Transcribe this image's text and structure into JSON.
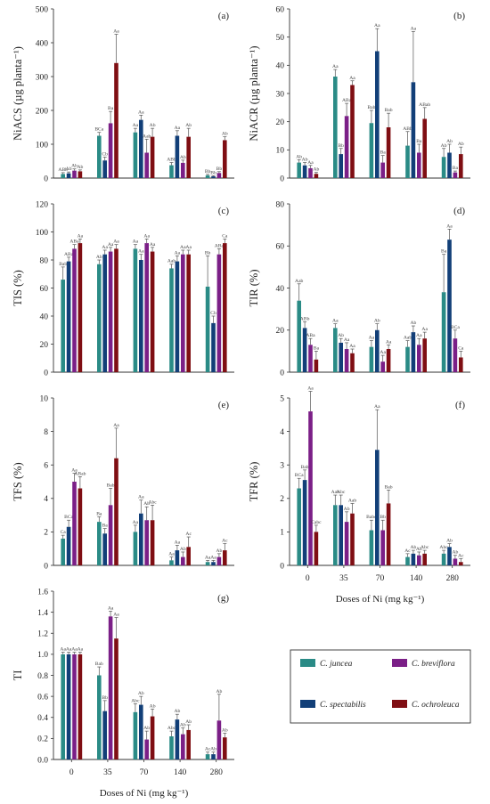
{
  "chart_data": [
    {
      "panel": "(a)",
      "type": "bar",
      "ylabel": "NiACS (µg planta⁻¹)",
      "ylim": [
        0,
        500
      ],
      "yticks": [
        0,
        100,
        200,
        300,
        400,
        500
      ],
      "xlabel": "",
      "show_xticks": false,
      "categories": [
        "0",
        "35",
        "70",
        "140",
        "280"
      ],
      "series": [
        {
          "name": "C. juncea",
          "values": [
            12,
            125,
            135,
            38,
            8
          ],
          "errors": [
            4,
            10,
            12,
            8,
            3
          ],
          "labels": [
            "ABb",
            "BCa",
            "Aa",
            "ABb",
            "Bb"
          ]
        },
        {
          "name": "C. spectabilis",
          "values": [
            14,
            52,
            172,
            125,
            5
          ],
          "errors": [
            4,
            10,
            14,
            15,
            2
          ],
          "labels": [
            "Ab",
            "Cb",
            "Aa",
            "Aa",
            "Bb"
          ]
        },
        {
          "name": "C. breviflora",
          "values": [
            22,
            162,
            75,
            45,
            15
          ],
          "errors": [
            5,
            35,
            40,
            8,
            4
          ],
          "labels": [
            "Ab",
            "Ba",
            "Aab",
            "Ab",
            "Bb"
          ]
        },
        {
          "name": "C. ochroleuca",
          "values": [
            20,
            340,
            122,
            122,
            112
          ],
          "errors": [
            4,
            85,
            25,
            25,
            10
          ],
          "labels": [
            "Ab",
            "Aa",
            "Ab",
            "Ab",
            "Ab"
          ]
        }
      ]
    },
    {
      "panel": "(b)",
      "type": "bar",
      "ylabel": "NiACR (µg planta⁻¹)",
      "ylim": [
        0,
        60
      ],
      "yticks": [
        0,
        10,
        20,
        30,
        40,
        50,
        60
      ],
      "xlabel": "",
      "show_xticks": false,
      "categories": [
        "0",
        "35",
        "70",
        "140",
        "280"
      ],
      "series": [
        {
          "name": "C. juncea",
          "values": [
            5.5,
            36,
            19.5,
            11.5,
            7.5
          ],
          "errors": [
            1,
            2.5,
            4.5,
            5,
            3
          ],
          "labels": [
            "Ab",
            "Aa",
            "Bab",
            "ABb",
            "Ab"
          ]
        },
        {
          "name": "C. spectabilis",
          "values": [
            4.5,
            8.5,
            45,
            34,
            9
          ],
          "errors": [
            1,
            2,
            8,
            18,
            3
          ],
          "labels": [
            "Ab",
            "Bb",
            "Aa",
            "Aa",
            "Ab"
          ]
        },
        {
          "name": "C. breviflora",
          "values": [
            3.5,
            22,
            5.5,
            9,
            2
          ],
          "errors": [
            1,
            4.5,
            2.5,
            3,
            0.5
          ],
          "labels": [
            "Aa",
            "ABa",
            "Ba",
            "Ba",
            "Ba"
          ]
        },
        {
          "name": "C. ochroleuca",
          "values": [
            1.5,
            33,
            18,
            21,
            8.5
          ],
          "errors": [
            0.5,
            1.5,
            5,
            4,
            2.5
          ],
          "labels": [
            "Ab",
            "Aa",
            "Bab",
            "ABab",
            "Ab"
          ]
        }
      ]
    },
    {
      "panel": "(c)",
      "type": "bar",
      "ylabel": "TIS (%)",
      "ylim": [
        0,
        120
      ],
      "yticks": [
        0,
        20,
        40,
        60,
        80,
        100,
        120
      ],
      "xlabel": "",
      "show_xticks": false,
      "categories": [
        "0",
        "35",
        "70",
        "140",
        "280"
      ],
      "series": [
        {
          "name": "C. juncea",
          "values": [
            66,
            77,
            88,
            74,
            61
          ],
          "errors": [
            9,
            3,
            3,
            3,
            22
          ],
          "labels": [
            "Bab",
            "Ab",
            "Aa",
            "Aab",
            "Bb"
          ]
        },
        {
          "name": "C. spectabilis",
          "values": [
            79,
            84,
            80,
            79,
            35
          ],
          "errors": [
            3,
            3,
            4,
            4,
            5
          ],
          "labels": [
            "ABa",
            "Aa",
            "Aa",
            "Aa",
            "Cb"
          ]
        },
        {
          "name": "C. breviflora",
          "values": [
            88,
            86,
            92,
            84,
            84
          ],
          "errors": [
            3,
            3,
            3,
            3,
            4
          ],
          "labels": [
            "ABa",
            "Aa",
            "Aa",
            "Aa",
            "ABa"
          ]
        },
        {
          "name": "C. ochroleuca",
          "values": [
            92,
            88,
            86,
            84,
            92
          ],
          "errors": [
            3,
            3,
            3,
            3,
            3
          ],
          "labels": [
            "Aa",
            "Aa",
            "Aa",
            "Aa",
            "Ca"
          ]
        }
      ]
    },
    {
      "panel": "(d)",
      "type": "bar",
      "ylabel": "TIR (%)",
      "ylim": [
        0,
        80
      ],
      "yticks": [
        0,
        20,
        40,
        60,
        80
      ],
      "xlabel": "",
      "show_xticks": false,
      "categories": [
        "0",
        "35",
        "70",
        "140",
        "280"
      ],
      "series": [
        {
          "name": "C. juncea",
          "values": [
            34,
            21,
            12,
            12,
            38
          ],
          "errors": [
            8,
            2,
            3,
            3,
            18
          ],
          "labels": [
            "Aab",
            "Aa",
            "Aa",
            "Aab",
            "Ba"
          ]
        },
        {
          "name": "C. spectabilis",
          "values": [
            21,
            14,
            20,
            19,
            63
          ],
          "errors": [
            3,
            2,
            3,
            3,
            5
          ],
          "labels": [
            "ABb",
            "Ab",
            "Ab",
            "Ab",
            "Aa"
          ]
        },
        {
          "name": "C. breviflora",
          "values": [
            13,
            11,
            5,
            13,
            16
          ],
          "errors": [
            3,
            3,
            3,
            3,
            4
          ],
          "labels": [
            "ABa",
            "Aa",
            "Aa",
            "Aa",
            "BCa"
          ]
        },
        {
          "name": "C. ochroleuca",
          "values": [
            6,
            9,
            11,
            16,
            7
          ],
          "errors": [
            4,
            2,
            2,
            3,
            3
          ],
          "labels": [
            "Ba",
            "Aa",
            "Aa",
            "Aa",
            "Ca"
          ]
        }
      ]
    },
    {
      "panel": "(e)",
      "type": "bar",
      "ylabel": "TFS (%)",
      "ylim": [
        0,
        10
      ],
      "yticks": [
        0,
        2,
        4,
        6,
        8,
        10
      ],
      "xlabel": "",
      "show_xticks": false,
      "categories": [
        "0",
        "35",
        "70",
        "140",
        "280"
      ],
      "series": [
        {
          "name": "C. juncea",
          "values": [
            1.6,
            2.6,
            2.0,
            0.3,
            0.2
          ],
          "errors": [
            0.2,
            0.3,
            0.4,
            0.2,
            0.1
          ],
          "labels": [
            "Ca",
            "Ba",
            "Aa",
            "Aa",
            "Aa"
          ]
        },
        {
          "name": "C. spectabilis",
          "values": [
            2.3,
            1.9,
            3.1,
            0.9,
            0.2
          ],
          "errors": [
            0.4,
            0.3,
            0.8,
            0.3,
            0.1
          ],
          "labels": [
            "BCa",
            "Ba",
            "Aa",
            "Aa",
            "Aa"
          ]
        },
        {
          "name": "C. breviflora",
          "values": [
            5.0,
            3.6,
            2.7,
            0.5,
            0.5
          ],
          "errors": [
            0.5,
            1.0,
            0.8,
            0.3,
            0.2
          ],
          "labels": [
            "Aa",
            "Bab",
            "Ab",
            "Ab",
            "Ab"
          ]
        },
        {
          "name": "C. ochroleuca",
          "values": [
            4.6,
            6.4,
            2.7,
            1.1,
            0.9
          ],
          "errors": [
            0.7,
            1.8,
            0.9,
            0.6,
            0.4
          ],
          "labels": [
            "ABab",
            "Aa",
            "Abc",
            "Ac",
            "Ac"
          ]
        }
      ]
    },
    {
      "panel": "(f)",
      "type": "bar",
      "ylabel": "TFR (%)",
      "ylim": [
        0,
        5
      ],
      "yticks": [
        0,
        1,
        2,
        3,
        4,
        5
      ],
      "xlabel": "Doses of Ni (mg kg⁻¹)",
      "show_xticks": true,
      "categories": [
        "0",
        "35",
        "70",
        "140",
        "280"
      ],
      "series": [
        {
          "name": "C. juncea",
          "values": [
            2.3,
            1.8,
            1.05,
            0.25,
            0.35
          ],
          "errors": [
            0.3,
            0.3,
            0.3,
            0.1,
            0.1
          ],
          "labels": [
            "BCa",
            "Aab",
            "Babc",
            "Ac",
            "Abc"
          ]
        },
        {
          "name": "C. spectabilis",
          "values": [
            2.55,
            1.8,
            3.45,
            0.35,
            0.55
          ],
          "errors": [
            0.3,
            0.3,
            1.2,
            0.1,
            0.1
          ],
          "labels": [
            "Bab",
            "Abc",
            "Aa",
            "Ab",
            "Ab"
          ]
        },
        {
          "name": "C. breviflora",
          "values": [
            4.6,
            1.3,
            1.05,
            0.3,
            0.2
          ],
          "errors": [
            0.6,
            0.3,
            0.3,
            0.1,
            0.1
          ],
          "labels": [
            "Aa",
            "Ab",
            "Bb",
            "Ab",
            "Ab"
          ]
        },
        {
          "name": "C. ochroleuca",
          "values": [
            1.0,
            1.55,
            1.85,
            0.35,
            0.1
          ],
          "errors": [
            0.2,
            0.3,
            0.4,
            0.1,
            0.1
          ],
          "labels": [
            "Cabc",
            "Aab",
            "Bab",
            "Abc",
            "Ac"
          ]
        }
      ]
    },
    {
      "panel": "(g)",
      "type": "bar",
      "ylabel": "TI",
      "ylim": [
        0,
        1.6
      ],
      "yticks": [
        "0.0",
        "0.2",
        "0.4",
        "0.6",
        "0.8",
        "1.0",
        "1.2",
        "1.4",
        "1.6"
      ],
      "xlabel": "Doses of Ni (mg kg⁻¹)",
      "show_xticks": true,
      "categories": [
        "0",
        "35",
        "70",
        "140",
        "280"
      ],
      "series": [
        {
          "name": "C. juncea",
          "values": [
            1.0,
            0.8,
            0.45,
            0.22,
            0.05
          ],
          "errors": [
            0.02,
            0.08,
            0.08,
            0.05,
            0.02
          ],
          "labels": [
            "Aa",
            "Bab",
            "Abc",
            "Abc",
            "Ac"
          ]
        },
        {
          "name": "C. spectabilis",
          "values": [
            1.0,
            0.46,
            0.52,
            0.38,
            0.05
          ],
          "errors": [
            0.02,
            0.1,
            0.08,
            0.05,
            0.02
          ],
          "labels": [
            "Aa",
            "Bb",
            "Ab",
            "Ab",
            "Ab"
          ]
        },
        {
          "name": "C. breviflora",
          "values": [
            1.0,
            1.36,
            0.19,
            0.24,
            0.37
          ],
          "errors": [
            0.02,
            0.05,
            0.08,
            0.06,
            0.25
          ],
          "labels": [
            "Aa",
            "Aa",
            "Ab",
            "Ab",
            "Ab"
          ]
        },
        {
          "name": "C. ochroleuca",
          "values": [
            1.0,
            1.15,
            0.41,
            0.28,
            0.21
          ],
          "errors": [
            0.02,
            0.2,
            0.07,
            0.05,
            0.04
          ],
          "labels": [
            "Aa",
            "Aa",
            "Ab",
            "Ab",
            "Ab"
          ]
        }
      ]
    }
  ],
  "legend": {
    "items": [
      {
        "name": "C. juncea",
        "color": "#2a8b86"
      },
      {
        "name": "C. breviflora",
        "color": "#7b1f87"
      },
      {
        "name": "C. spectabilis",
        "color": "#123f78"
      },
      {
        "name": "C. ochroleuca",
        "color": "#7f0e13"
      }
    ]
  },
  "colors": {
    "C. juncea": "#2a8b86",
    "C. spectabilis": "#123f78",
    "C. breviflora": "#7b1f87",
    "C. ochroleuca": "#7f0e13"
  }
}
